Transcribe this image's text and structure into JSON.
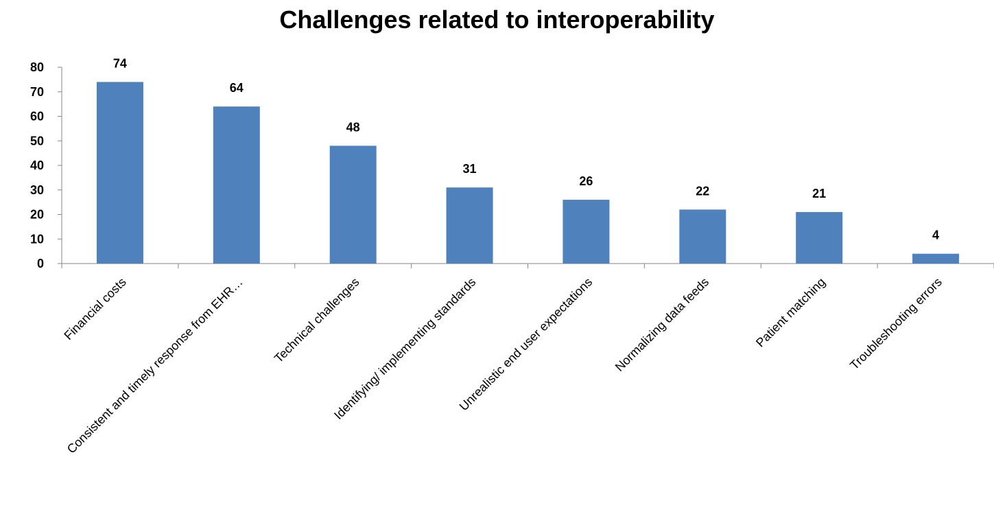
{
  "chart_data": {
    "type": "bar",
    "title": "Challenges related to interoperability",
    "categories": [
      "Financial costs",
      "Consistent and timely response from EHR…",
      "Technical challenges",
      "Identifying/ implementing standards",
      "Unrealistic end user expectations",
      "Normalizing data feeds",
      "Patient matching",
      "Troubleshooting errors"
    ],
    "values": [
      74,
      64,
      48,
      31,
      26,
      22,
      21,
      4
    ],
    "ylim": [
      0,
      80
    ],
    "yticks": [
      "0",
      "10",
      "20",
      "30",
      "40",
      "50",
      "60",
      "70",
      "80"
    ],
    "xlabel": "",
    "ylabel": "",
    "grid": false,
    "legend": "none",
    "bar_color": "#4f81bd"
  }
}
